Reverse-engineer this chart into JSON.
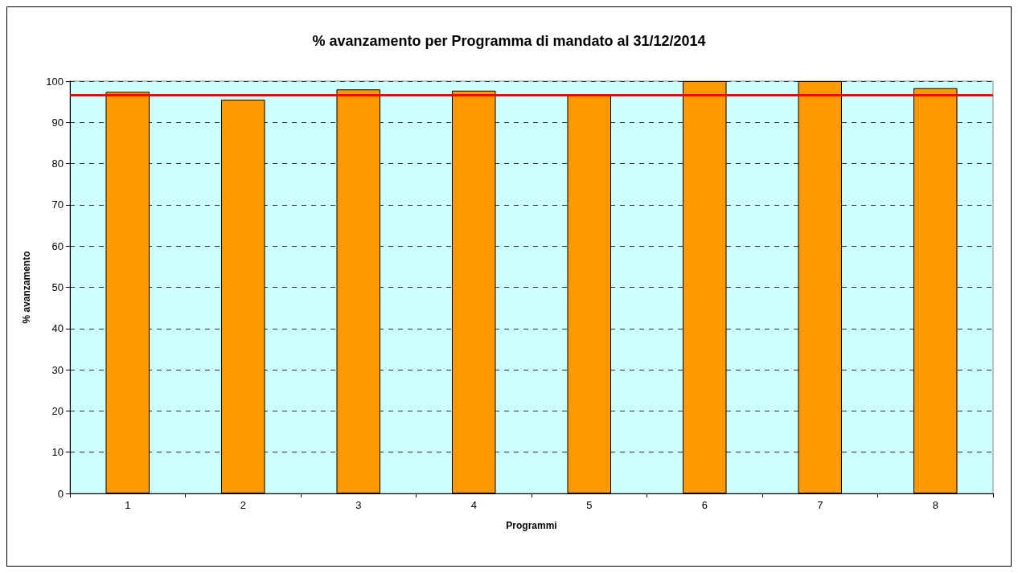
{
  "chart_data": {
    "type": "bar",
    "title": "% avanzamento per Programma di mandato al 31/12/2014",
    "xlabel": "Programmi",
    "ylabel": "% avanzamento",
    "categories": [
      "1",
      "2",
      "3",
      "4",
      "5",
      "6",
      "7",
      "8"
    ],
    "values": [
      97.4,
      95.5,
      98.0,
      97.7,
      96.6,
      100,
      100,
      98.3
    ],
    "color": "#ff9900",
    "ylim": [
      0,
      100
    ],
    "yticks": [
      0,
      10,
      20,
      30,
      40,
      50,
      60,
      70,
      80,
      90,
      100
    ],
    "grid": "y",
    "ref_lines": [
      {
        "axis": "y",
        "value": 96.6,
        "color": "#ff0000",
        "line_style": "solid"
      }
    ]
  }
}
